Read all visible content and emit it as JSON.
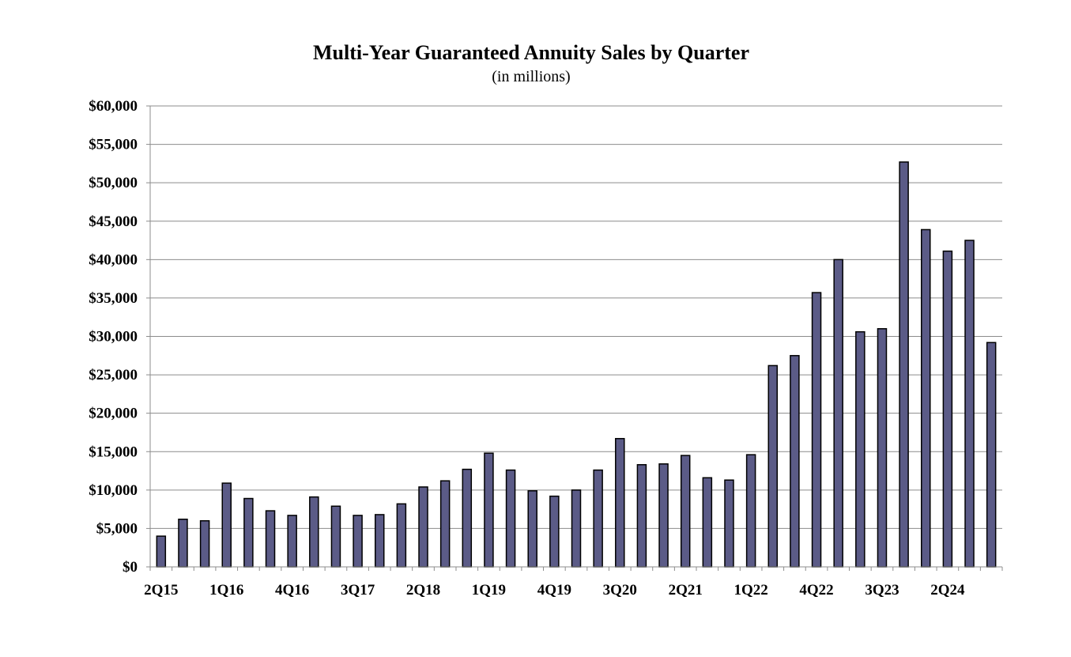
{
  "chart_data": {
    "type": "bar",
    "title": "Multi-Year Guaranteed Annuity Sales by Quarter",
    "subtitle": "(in millions)",
    "xlabel": "",
    "ylabel": "",
    "ylim": [
      0,
      60000
    ],
    "yticks": [
      0,
      5000,
      10000,
      15000,
      20000,
      25000,
      30000,
      35000,
      40000,
      45000,
      50000,
      55000,
      60000
    ],
    "ytick_labels": [
      "$0",
      "$5,000",
      "$10,000",
      "$15,000",
      "$20,000",
      "$25,000",
      "$30,000",
      "$35,000",
      "$40,000",
      "$45,000",
      "$50,000",
      "$55,000",
      "$60,000"
    ],
    "categories": [
      "2Q15",
      "3Q15",
      "4Q15",
      "1Q16",
      "2Q16",
      "3Q16",
      "4Q16",
      "1Q17",
      "2Q17",
      "3Q17",
      "4Q17",
      "1Q18",
      "2Q18",
      "3Q18",
      "4Q18",
      "1Q19",
      "2Q19",
      "3Q19",
      "4Q19",
      "1Q20",
      "2Q20",
      "3Q20",
      "4Q20",
      "1Q21",
      "2Q21",
      "3Q21",
      "4Q21",
      "1Q22",
      "2Q22",
      "3Q22",
      "4Q22",
      "1Q23",
      "2Q23",
      "3Q23",
      "4Q23",
      "1Q24",
      "2Q24",
      "3Q24",
      "4Q24"
    ],
    "xtick_labels_shown": [
      "2Q15",
      "1Q16",
      "4Q16",
      "3Q17",
      "2Q18",
      "1Q19",
      "4Q19",
      "3Q20",
      "2Q21",
      "1Q22",
      "4Q22",
      "3Q23",
      "2Q24"
    ],
    "values": [
      4000,
      6200,
      6000,
      10900,
      8900,
      7300,
      6700,
      9100,
      7900,
      6700,
      6800,
      8200,
      10400,
      11200,
      12700,
      14800,
      12600,
      9900,
      9200,
      10000,
      12600,
      16700,
      13300,
      13400,
      14500,
      11600,
      11300,
      14600,
      26200,
      27500,
      35700,
      40000,
      30600,
      31000,
      52700,
      43900,
      41100,
      42500,
      29200
    ],
    "grid": true,
    "bar_color": "#5b5b87"
  }
}
